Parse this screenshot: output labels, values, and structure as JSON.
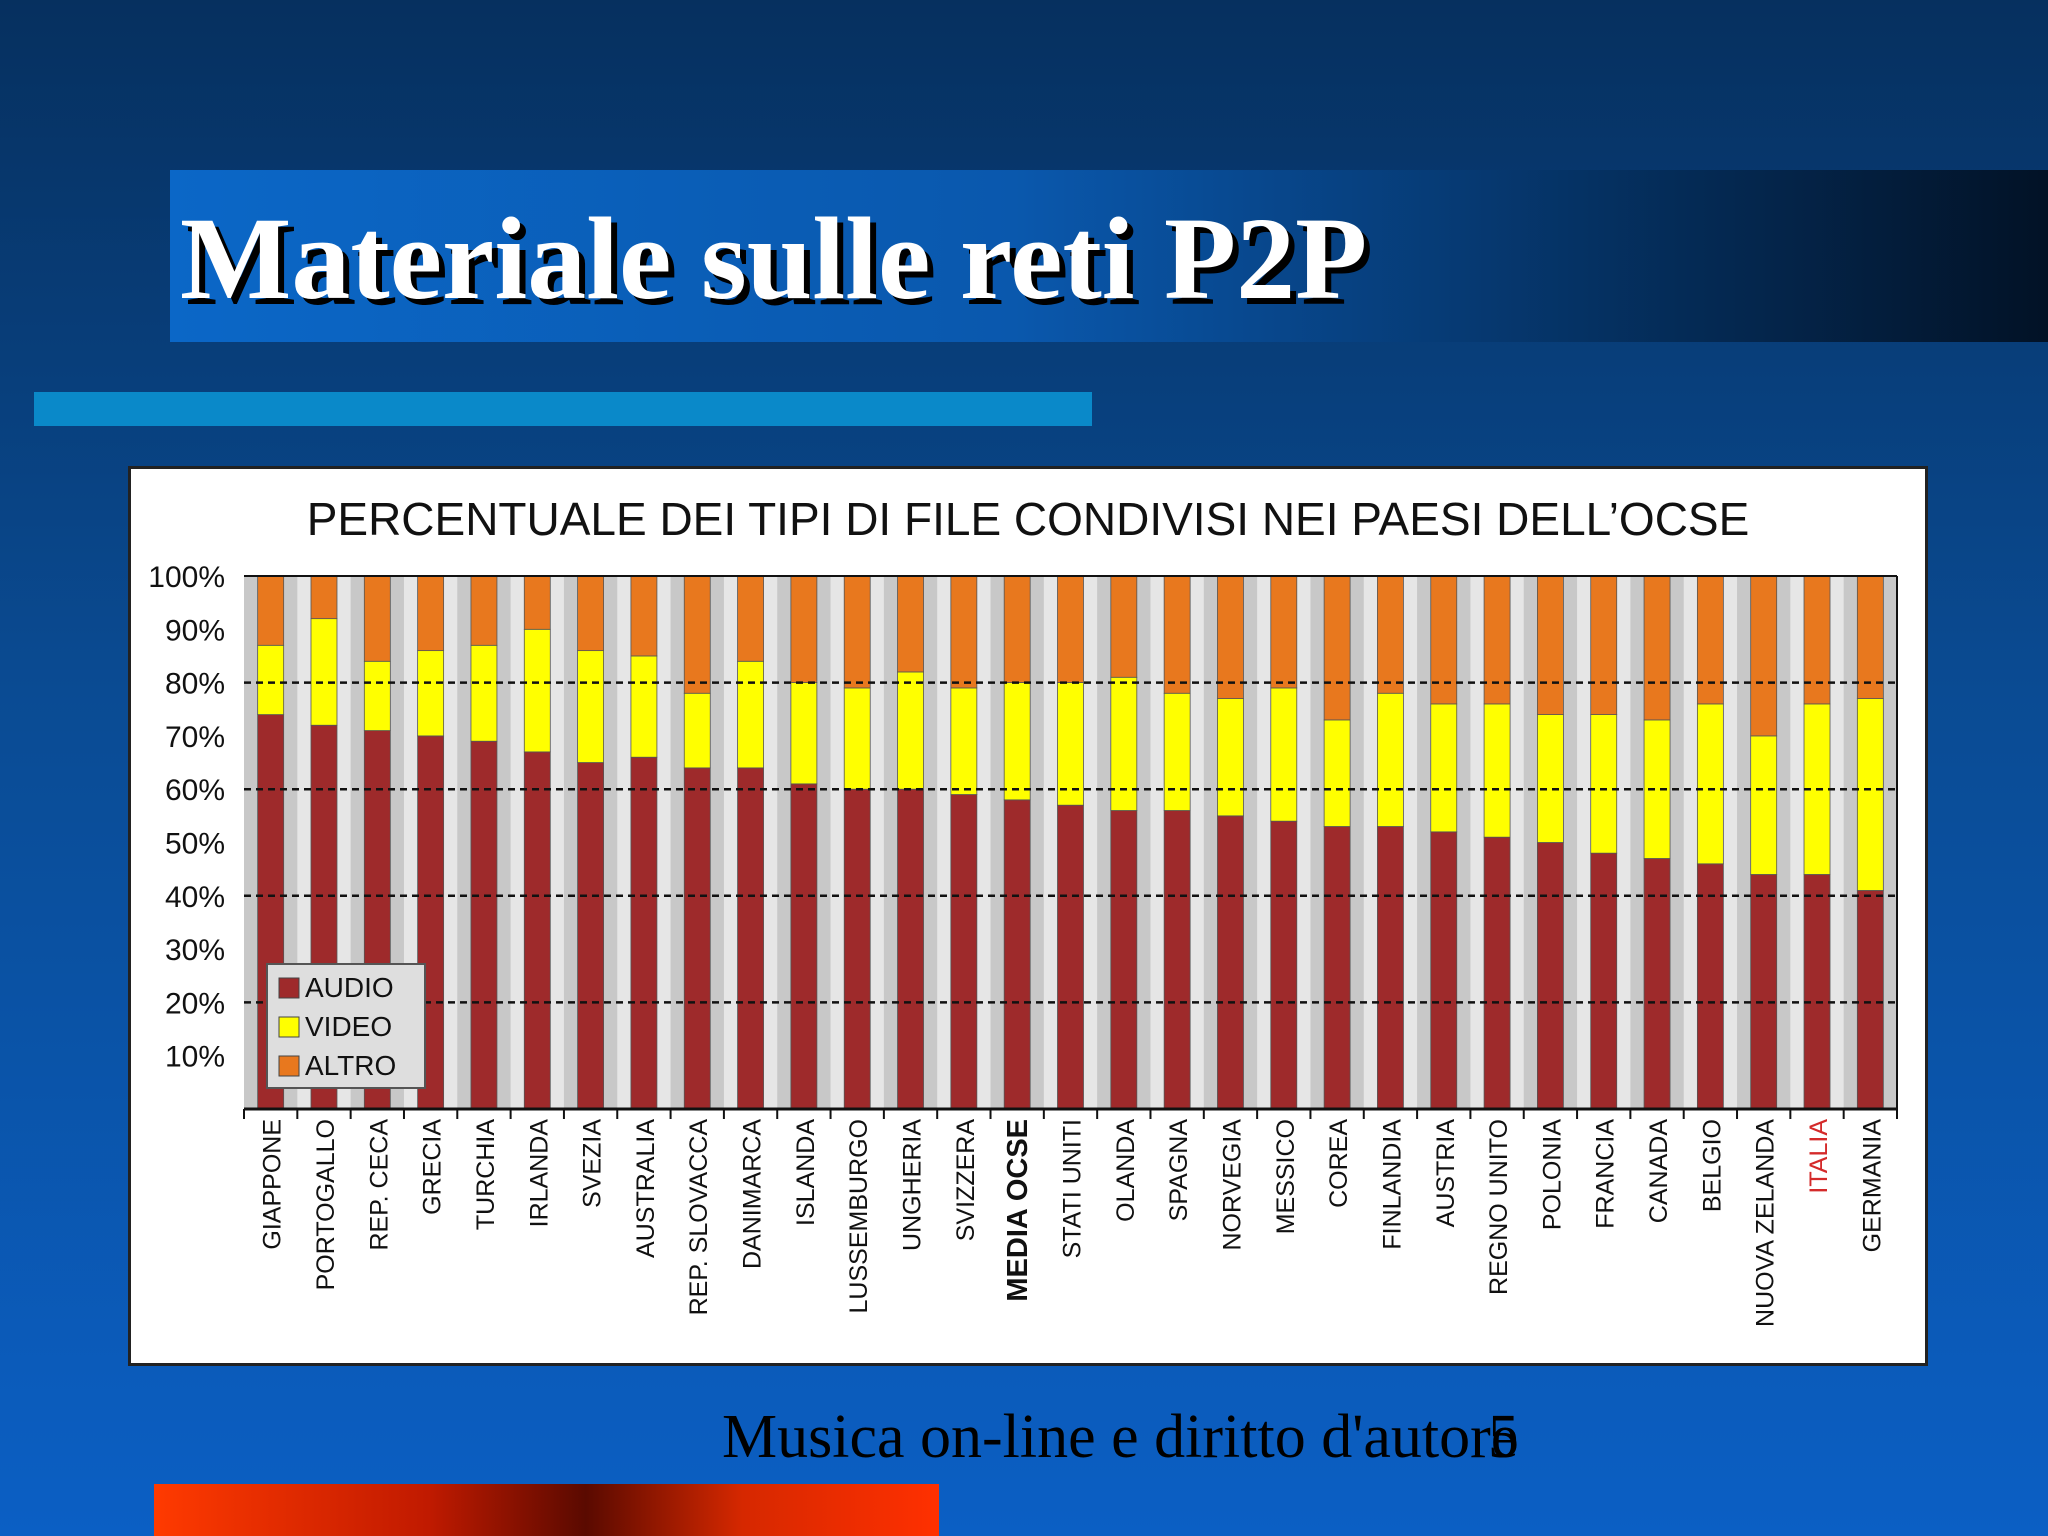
{
  "slide": {
    "title": "Materiale sulle reti P2P",
    "footer": "Musica on-line e diritto d'autore",
    "page_number": "5"
  },
  "colors": {
    "audio": "#9e2a2b",
    "video": "#ffff00",
    "altro": "#e8781e",
    "background_stripe_a": "#c8c8c8",
    "background_stripe_b": "#e6e6e6",
    "highlight_label": "#d42a2a"
  },
  "chart_data": {
    "type": "bar",
    "stacked": true,
    "title": "PERCENTUALE DEI TIPI DI FILE CONDIVISI NEI PAESI DELL’OCSE",
    "y_ticks": [
      "100%",
      "90%",
      "80%",
      "70%",
      "60%",
      "50%",
      "40%",
      "30%",
      "20%",
      "10%"
    ],
    "ylim": [
      0,
      100
    ],
    "grid": "dashed at 20% intervals",
    "legend_position": "bottom-left",
    "categories": [
      "GIAPPONE",
      "PORTOGALLO",
      "REP. CECA",
      "GRECIA",
      "TURCHIA",
      "IRLANDA",
      "SVEZIA",
      "AUSTRALIA",
      "REP. SLOVACCA",
      "DANIMARCA",
      "ISLANDA",
      "LUSSEMBURGO",
      "UNGHERIA",
      "SVIZZERA",
      "MEDIA OCSE",
      "STATI UNITI",
      "OLANDA",
      "SPAGNA",
      "NORVEGIA",
      "MESSICO",
      "COREA",
      "FINLANDIA",
      "AUSTRIA",
      "REGNO UNITO",
      "POLONIA",
      "FRANCIA",
      "CANADA",
      "BELGIO",
      "NUOVA ZELANDA",
      "ITALIA",
      "GERMANIA"
    ],
    "bold_category": "MEDIA OCSE",
    "red_category": "ITALIA",
    "series": [
      {
        "name": "AUDIO",
        "values": [
          74,
          72,
          71,
          70,
          69,
          67,
          65,
          66,
          64,
          64,
          61,
          60,
          60,
          59,
          58,
          57,
          56,
          56,
          55,
          54,
          53,
          53,
          52,
          51,
          50,
          48,
          47,
          46,
          44,
          44,
          41
        ]
      },
      {
        "name": "VIDEO",
        "values": [
          13,
          20,
          13,
          16,
          18,
          23,
          21,
          19,
          14,
          20,
          19,
          19,
          22,
          20,
          22,
          23,
          25,
          22,
          22,
          25,
          20,
          25,
          24,
          25,
          24,
          26,
          26,
          30,
          26,
          32,
          36
        ]
      },
      {
        "name": "ALTRO",
        "values": [
          13,
          8,
          16,
          14,
          13,
          10,
          14,
          15,
          22,
          16,
          20,
          21,
          18,
          21,
          20,
          20,
          19,
          22,
          23,
          21,
          27,
          22,
          24,
          24,
          26,
          26,
          27,
          24,
          30,
          24,
          23
        ]
      }
    ]
  }
}
